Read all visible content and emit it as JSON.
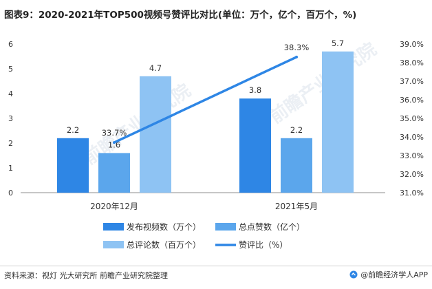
{
  "title": "图表9：2020-2021年TOP500视频号赞评比对比(单位：万个，亿个，百万个，%)",
  "source": "资料来源：视灯 光大研究所 前瞻产业研究院整理",
  "brand": "@前瞻经济学人APP",
  "watermark": "前瞻产业研究院",
  "colors": {
    "bar1": "#2E86E5",
    "bar2": "#5BA6EC",
    "bar3": "#8EC3F3",
    "line": "#2E86E5",
    "axis": "#8c8c8c",
    "text": "#333333"
  },
  "chart_data": {
    "type": "bar",
    "title": "2020-2021年TOP500视频号赞评比对比",
    "categories": [
      "2020年12月",
      "2021年5月"
    ],
    "series": [
      {
        "name": "发布视频数（万个）",
        "type": "bar",
        "axis": "left",
        "values": [
          2.2,
          3.8
        ],
        "labels": [
          "2.2",
          "3.8"
        ]
      },
      {
        "name": "总点赞数（亿个）",
        "type": "bar",
        "axis": "left",
        "values": [
          1.6,
          2.2
        ],
        "labels": [
          "1.6",
          "2.2"
        ]
      },
      {
        "name": "总评论数（百万个）",
        "type": "bar",
        "axis": "left",
        "values": [
          4.7,
          5.7
        ],
        "labels": [
          "4.7",
          "5.7"
        ]
      },
      {
        "name": "赞评比（%）",
        "type": "line",
        "axis": "right",
        "values": [
          33.7,
          38.3
        ],
        "labels": [
          "33.7%",
          "38.3%"
        ]
      }
    ],
    "left_axis": {
      "min": 0,
      "max": 6,
      "ticks": [
        "0",
        "1",
        "2",
        "3",
        "4",
        "5",
        "6"
      ]
    },
    "right_axis": {
      "min": 31.0,
      "max": 39.0,
      "ticks": [
        "31.0%",
        "32.0%",
        "33.0%",
        "34.0%",
        "35.0%",
        "36.0%",
        "37.0%",
        "38.0%",
        "39.0%"
      ]
    },
    "legend_position": "bottom"
  }
}
